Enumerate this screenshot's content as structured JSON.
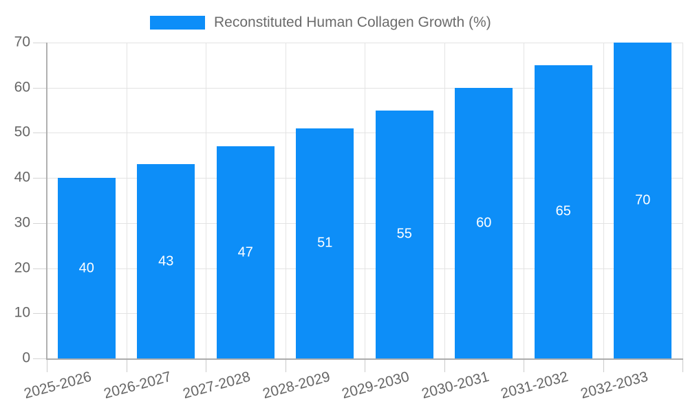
{
  "chart_data": {
    "type": "bar",
    "title": "Reconstituted Human Collagen Growth (%)",
    "categories": [
      "2025-2026",
      "2026-2027",
      "2027-2028",
      "2028-2029",
      "2029-2030",
      "2030-2031",
      "2031-2032",
      "2032-2033"
    ],
    "values": [
      40,
      43,
      47,
      51,
      55,
      60,
      65,
      70
    ],
    "value_labels": [
      "40",
      "43",
      "47",
      "51",
      "55",
      "60",
      "65",
      "70"
    ],
    "xlabel": "",
    "ylabel": "",
    "ylim": [
      0,
      70
    ],
    "y_ticks": [
      0,
      10,
      20,
      30,
      40,
      50,
      60,
      70
    ],
    "grid": true,
    "legend_position": "top-center",
    "x_label_rotation_deg": -15,
    "colors": {
      "bar": "#0d8ef8",
      "value_label": "#ffffff",
      "axis_text": "#666666",
      "legend_text": "#6b6b6b",
      "gridline": "#e3e3e3",
      "axis_line": "#b0b0b0",
      "background": "#ffffff"
    }
  }
}
